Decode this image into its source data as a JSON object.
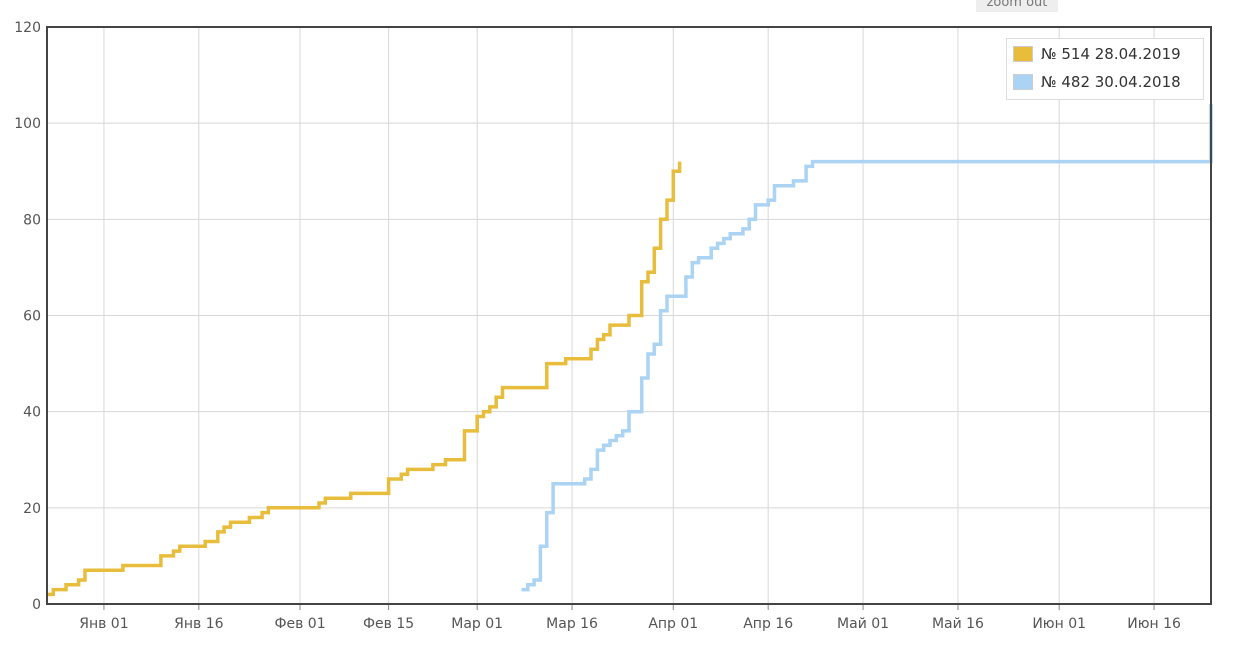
{
  "zoom_label": "zoom out",
  "chart_data": {
    "type": "line",
    "title": "",
    "xlabel": "",
    "ylabel": "",
    "ylim": [
      0,
      120
    ],
    "yticks": [
      0,
      20,
      40,
      60,
      80,
      100,
      120
    ],
    "xlim": [
      "2018-12-23",
      "2018-06-25"
    ],
    "x_ticks": [
      {
        "label": "Янв 01",
        "date": "01-01"
      },
      {
        "label": "Янв 16",
        "date": "01-16"
      },
      {
        "label": "Фев 01",
        "date": "02-01"
      },
      {
        "label": "Фев 15",
        "date": "02-15"
      },
      {
        "label": "Мар 01",
        "date": "03-01"
      },
      {
        "label": "Мар 16",
        "date": "03-16"
      },
      {
        "label": "Апр 01",
        "date": "04-01"
      },
      {
        "label": "Апр 16",
        "date": "04-16"
      },
      {
        "label": "Май 01",
        "date": "05-01"
      },
      {
        "label": "Май 16",
        "date": "05-16"
      },
      {
        "label": "Июн 01",
        "date": "06-01"
      },
      {
        "label": "Июн 16",
        "date": "06-16"
      }
    ],
    "grid": true,
    "step": true,
    "legend_position": "top-right",
    "series": [
      {
        "name": "№ 514 28.04.2019",
        "color": "#e8bd3c",
        "points": [
          [
            "12-23",
            2
          ],
          [
            "12-24",
            3
          ],
          [
            "12-26",
            4
          ],
          [
            "12-28",
            5
          ],
          [
            "12-29",
            7
          ],
          [
            "01-04",
            8
          ],
          [
            "01-10",
            10
          ],
          [
            "01-12",
            11
          ],
          [
            "01-13",
            12
          ],
          [
            "01-17",
            13
          ],
          [
            "01-19",
            15
          ],
          [
            "01-20",
            16
          ],
          [
            "01-21",
            17
          ],
          [
            "01-24",
            18
          ],
          [
            "01-26",
            19
          ],
          [
            "01-27",
            20
          ],
          [
            "02-04",
            21
          ],
          [
            "02-05",
            22
          ],
          [
            "02-09",
            23
          ],
          [
            "02-15",
            26
          ],
          [
            "02-17",
            27
          ],
          [
            "02-18",
            28
          ],
          [
            "02-22",
            29
          ],
          [
            "02-24",
            30
          ],
          [
            "02-27",
            36
          ],
          [
            "02-29",
            39
          ],
          [
            "03-02",
            40
          ],
          [
            "03-03",
            41
          ],
          [
            "03-04",
            43
          ],
          [
            "03-05",
            45
          ],
          [
            "03-12",
            50
          ],
          [
            "03-15",
            51
          ],
          [
            "03-19",
            53
          ],
          [
            "03-20",
            55
          ],
          [
            "03-21",
            56
          ],
          [
            "03-22",
            58
          ],
          [
            "03-25",
            60
          ],
          [
            "03-27",
            67
          ],
          [
            "03-28",
            69
          ],
          [
            "03-29",
            74
          ],
          [
            "03-30",
            80
          ],
          [
            "03-31",
            84
          ],
          [
            "04-01",
            90
          ],
          [
            "04-02",
            92
          ]
        ]
      },
      {
        "name": "№ 482 30.04.2018",
        "color": "#aad3f4",
        "points": [
          [
            "03-08",
            3
          ],
          [
            "03-09",
            4
          ],
          [
            "03-10",
            5
          ],
          [
            "03-11",
            12
          ],
          [
            "03-12",
            19
          ],
          [
            "03-13",
            25
          ],
          [
            "03-18",
            26
          ],
          [
            "03-19",
            28
          ],
          [
            "03-20",
            32
          ],
          [
            "03-21",
            33
          ],
          [
            "03-22",
            34
          ],
          [
            "03-23",
            35
          ],
          [
            "03-24",
            36
          ],
          [
            "03-25",
            40
          ],
          [
            "03-27",
            47
          ],
          [
            "03-28",
            52
          ],
          [
            "03-29",
            54
          ],
          [
            "03-30",
            61
          ],
          [
            "03-31",
            64
          ],
          [
            "04-03",
            68
          ],
          [
            "04-04",
            71
          ],
          [
            "04-05",
            72
          ],
          [
            "04-07",
            74
          ],
          [
            "04-08",
            75
          ],
          [
            "04-09",
            76
          ],
          [
            "04-10",
            77
          ],
          [
            "04-12",
            78
          ],
          [
            "04-13",
            80
          ],
          [
            "04-14",
            83
          ],
          [
            "04-16",
            84
          ],
          [
            "04-17",
            87
          ],
          [
            "04-20",
            88
          ],
          [
            "04-22",
            91
          ],
          [
            "04-23",
            92
          ],
          [
            "06-25",
            92
          ],
          [
            "06-25",
            104
          ]
        ]
      }
    ]
  }
}
